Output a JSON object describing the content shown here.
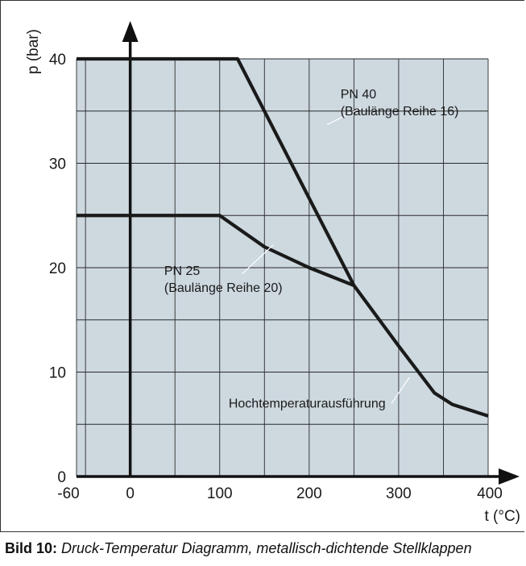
{
  "caption": {
    "label": "Bild 10:",
    "text": "Druck-Temperatur Diagramm, metallisch-dichtende Stellklappen"
  },
  "chart_data": {
    "type": "line",
    "xlabel": "t (°C)",
    "ylabel": "p (bar)",
    "xlim": [
      -60,
      400
    ],
    "ylim": [
      0,
      40
    ],
    "x_ticks": [
      -60,
      0,
      100,
      200,
      300,
      400
    ],
    "y_ticks": [
      0,
      10,
      20,
      30,
      40
    ],
    "grid": true,
    "background_color": "#cdd8df",
    "line_color": "#1a1a1a",
    "series": [
      {
        "name": "PN 40 (Baulänge Reihe 16)",
        "x": [
          -60,
          120,
          250,
          300,
          340,
          360,
          400
        ],
        "y": [
          40,
          40,
          18.3,
          12.5,
          8,
          6.9,
          5.8
        ]
      },
      {
        "name": "PN 25 (Baulänge Reihe 20)",
        "x": [
          -60,
          100,
          150,
          200,
          250
        ],
        "y": [
          25,
          25,
          22,
          20,
          18.3
        ]
      }
    ],
    "annotations": [
      {
        "line1": "PN 40",
        "line2": "(Baulänge Reihe 16)",
        "text_x": 235,
        "text_y": 36.2,
        "leader_from": [
          258,
          35.3
        ],
        "leader_to": [
          220,
          33.7
        ]
      },
      {
        "line1": "PN 25",
        "line2": "(Baulänge Reihe 20)",
        "text_x": 38,
        "text_y": 19.3,
        "leader_from": [
          125,
          19.4
        ],
        "leader_to": [
          160,
          22.2
        ]
      },
      {
        "line1": "Hochtemperaturausführung",
        "line2": "",
        "text_x": 110,
        "text_y": 6.6,
        "leader_from": [
          292,
          7.0
        ],
        "leader_to": [
          312,
          9.5
        ]
      }
    ]
  }
}
